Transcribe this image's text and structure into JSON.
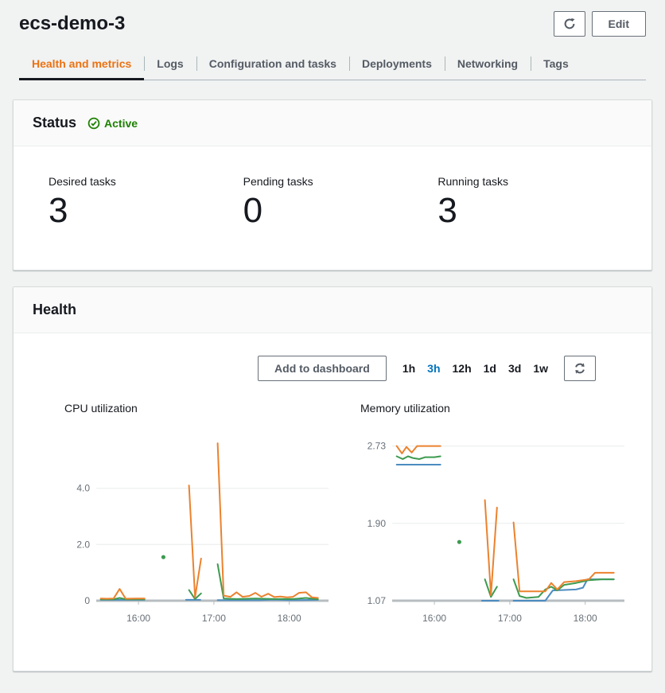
{
  "page": {
    "title": "ecs-demo-3",
    "background": "#f1f2f2"
  },
  "header": {
    "edit_label": "Edit",
    "refresh_icon": "refresh-icon"
  },
  "tabs": {
    "active_color": "#ec7211",
    "items": [
      {
        "label": "Health and metrics",
        "active": true
      },
      {
        "label": "Logs",
        "active": false
      },
      {
        "label": "Configuration and tasks",
        "active": false
      },
      {
        "label": "Deployments",
        "active": false
      },
      {
        "label": "Networking",
        "active": false
      },
      {
        "label": "Tags",
        "active": false
      }
    ]
  },
  "status": {
    "title": "Status",
    "badge": {
      "label": "Active",
      "color": "#1d8102",
      "icon": "check-circle-icon"
    },
    "stats": [
      {
        "label": "Desired tasks",
        "value": "3"
      },
      {
        "label": "Pending tasks",
        "value": "0"
      },
      {
        "label": "Running tasks",
        "value": "3"
      }
    ]
  },
  "health": {
    "title": "Health",
    "add_to_dashboard_label": "Add to dashboard",
    "selected_range_color": "#0073bb",
    "refresh_icon": "refresh-icon",
    "time_ranges": [
      {
        "label": "1h",
        "selected": false
      },
      {
        "label": "3h",
        "selected": true
      },
      {
        "label": "12h",
        "selected": false
      },
      {
        "label": "1d",
        "selected": false
      },
      {
        "label": "3d",
        "selected": false
      },
      {
        "label": "1w",
        "selected": false
      }
    ]
  },
  "chart_data": [
    {
      "type": "line",
      "title": "CPU utilization",
      "xlabel": "",
      "ylabel": "",
      "xlim": [
        15.44,
        18.52
      ],
      "ylim": [
        0,
        6.0
      ],
      "axis_y": 0,
      "grid": true,
      "legend": "none",
      "x_ticks": [
        {
          "v": 16,
          "label": "16:00"
        },
        {
          "v": 17,
          "label": "17:00"
        },
        {
          "v": 18,
          "label": "18:00"
        }
      ],
      "y_ticks": [
        {
          "v": 4.0,
          "label": "4.0"
        },
        {
          "v": 2.0,
          "label": "2.0"
        },
        {
          "v": 0,
          "label": "0"
        }
      ],
      "series": [
        {
          "name": "blue",
          "color": "#4d8cc0",
          "segments": [
            [
              [
                15.5,
                0.03
              ],
              [
                16.08,
                0.03
              ]
            ],
            [
              [
                16.63,
                0.03
              ],
              [
                16.82,
                0.03
              ]
            ],
            [
              [
                17.05,
                0.02
              ],
              [
                17.6,
                0.02
              ],
              [
                17.8,
                0.04
              ],
              [
                18.0,
                0.02
              ],
              [
                18.38,
                0.03
              ]
            ]
          ],
          "dots": []
        },
        {
          "name": "green",
          "color": "#3d9b50",
          "segments": [
            [
              [
                15.5,
                0.05
              ],
              [
                15.67,
                0.05
              ],
              [
                15.75,
                0.1
              ],
              [
                15.83,
                0.05
              ],
              [
                16.0,
                0.05
              ],
              [
                16.08,
                0.05
              ]
            ],
            [
              [
                16.67,
                0.38
              ],
              [
                16.75,
                0.06
              ],
              [
                16.83,
                0.26
              ]
            ],
            [
              [
                17.05,
                1.3
              ],
              [
                17.13,
                0.08
              ],
              [
                17.3,
                0.06
              ],
              [
                17.55,
                0.08
              ],
              [
                17.8,
                0.06
              ],
              [
                18.05,
                0.06
              ],
              [
                18.22,
                0.1
              ],
              [
                18.38,
                0.05
              ]
            ]
          ],
          "dots": [
            [
              16.33,
              1.55
            ]
          ]
        },
        {
          "name": "orange",
          "color": "#eb822e",
          "segments": [
            [
              [
                15.5,
                0.08
              ],
              [
                15.58,
                0.07
              ],
              [
                15.67,
                0.08
              ],
              [
                15.75,
                0.42
              ],
              [
                15.83,
                0.07
              ],
              [
                15.97,
                0.08
              ],
              [
                16.08,
                0.08
              ]
            ],
            [
              [
                16.67,
                4.1
              ],
              [
                16.75,
                0.12
              ],
              [
                16.83,
                1.5
              ]
            ],
            [
              [
                17.05,
                5.6
              ],
              [
                17.13,
                0.18
              ],
              [
                17.22,
                0.14
              ],
              [
                17.3,
                0.3
              ],
              [
                17.38,
                0.14
              ],
              [
                17.47,
                0.17
              ],
              [
                17.55,
                0.28
              ],
              [
                17.63,
                0.14
              ],
              [
                17.72,
                0.25
              ],
              [
                17.8,
                0.13
              ],
              [
                17.88,
                0.15
              ],
              [
                17.97,
                0.12
              ],
              [
                18.05,
                0.14
              ],
              [
                18.13,
                0.28
              ],
              [
                18.22,
                0.3
              ],
              [
                18.3,
                0.12
              ],
              [
                18.38,
                0.1
              ]
            ]
          ],
          "dots": []
        }
      ]
    },
    {
      "type": "line",
      "title": "Memory utilization",
      "xlabel": "",
      "ylabel": "",
      "xlim": [
        15.44,
        18.52
      ],
      "ylim": [
        1.07,
        2.88
      ],
      "axis_y": 1.07,
      "grid": true,
      "legend": "none",
      "x_ticks": [
        {
          "v": 16,
          "label": "16:00"
        },
        {
          "v": 17,
          "label": "17:00"
        },
        {
          "v": 18,
          "label": "18:00"
        }
      ],
      "y_ticks": [
        {
          "v": 2.73,
          "label": "2.73"
        },
        {
          "v": 1.9,
          "label": "1.90"
        },
        {
          "v": 1.07,
          "label": "1.07"
        }
      ],
      "series": [
        {
          "name": "blue",
          "color": "#4d8cc0",
          "segments": [
            [
              [
                15.5,
                2.53
              ],
              [
                16.08,
                2.53
              ]
            ],
            [
              [
                16.63,
                1.07
              ],
              [
                16.85,
                1.07
              ]
            ],
            [
              [
                17.05,
                1.07
              ],
              [
                17.47,
                1.07
              ],
              [
                17.57,
                1.18
              ],
              [
                17.88,
                1.19
              ],
              [
                17.97,
                1.21
              ],
              [
                18.03,
                1.3
              ],
              [
                18.38,
                1.3
              ]
            ]
          ],
          "dots": []
        },
        {
          "name": "green",
          "color": "#3d9b50",
          "segments": [
            [
              [
                15.5,
                2.62
              ],
              [
                15.58,
                2.59
              ],
              [
                15.65,
                2.62
              ],
              [
                15.72,
                2.6
              ],
              [
                15.8,
                2.59
              ],
              [
                15.88,
                2.61
              ],
              [
                16.0,
                2.61
              ],
              [
                16.08,
                2.62
              ]
            ],
            [
              [
                16.67,
                1.3
              ],
              [
                16.75,
                1.11
              ],
              [
                16.83,
                1.22
              ]
            ],
            [
              [
                17.05,
                1.3
              ],
              [
                17.13,
                1.12
              ],
              [
                17.22,
                1.1
              ],
              [
                17.38,
                1.11
              ],
              [
                17.47,
                1.19
              ],
              [
                17.55,
                1.22
              ],
              [
                17.63,
                1.18
              ],
              [
                17.72,
                1.24
              ],
              [
                17.88,
                1.26
              ],
              [
                18.05,
                1.29
              ],
              [
                18.22,
                1.3
              ],
              [
                18.38,
                1.3
              ]
            ]
          ],
          "dots": [
            [
              16.33,
              1.7
            ]
          ]
        },
        {
          "name": "orange",
          "color": "#eb822e",
          "segments": [
            [
              [
                15.5,
                2.73
              ],
              [
                15.57,
                2.65
              ],
              [
                15.63,
                2.72
              ],
              [
                15.7,
                2.66
              ],
              [
                15.77,
                2.73
              ],
              [
                15.92,
                2.73
              ],
              [
                16.08,
                2.73
              ]
            ],
            [
              [
                16.67,
                2.15
              ],
              [
                16.75,
                1.13
              ],
              [
                16.83,
                2.07
              ]
            ],
            [
              [
                17.05,
                1.91
              ],
              [
                17.13,
                1.17
              ],
              [
                17.47,
                1.17
              ],
              [
                17.55,
                1.26
              ],
              [
                17.63,
                1.19
              ],
              [
                17.72,
                1.27
              ],
              [
                17.88,
                1.28
              ],
              [
                18.05,
                1.3
              ],
              [
                18.13,
                1.37
              ],
              [
                18.38,
                1.37
              ]
            ]
          ],
          "dots": []
        }
      ]
    }
  ]
}
